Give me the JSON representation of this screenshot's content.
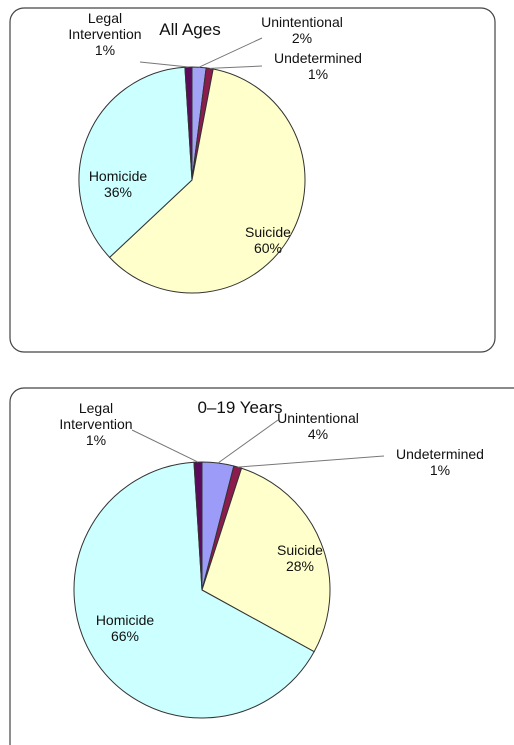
{
  "chart_data": [
    {
      "type": "pie",
      "title": "All Ages",
      "categories": [
        "Unintentional",
        "Undetermined",
        "Suicide",
        "Homicide",
        "Legal Intervention"
      ],
      "values": [
        2,
        1,
        60,
        36,
        1
      ],
      "value_labels": [
        "2%",
        "1%",
        "60%",
        "36%",
        "1%"
      ],
      "colors": [
        "#a4a4f6",
        "#8c1c4c",
        "#ffffcc",
        "#ccffff",
        "#5c0a5c"
      ]
    },
    {
      "type": "pie",
      "title": "0–19 Years",
      "categories": [
        "Unintentional",
        "Undetermined",
        "Suicide",
        "Homicide",
        "Legal Intervention"
      ],
      "values": [
        4,
        1,
        28,
        66,
        1
      ],
      "value_labels": [
        "4%",
        "1%",
        "28%",
        "66%",
        "1%"
      ],
      "colors": [
        "#9c9cf8",
        "#8c1c4c",
        "#ffffcc",
        "#ccffff",
        "#5c0a5c"
      ]
    }
  ]
}
